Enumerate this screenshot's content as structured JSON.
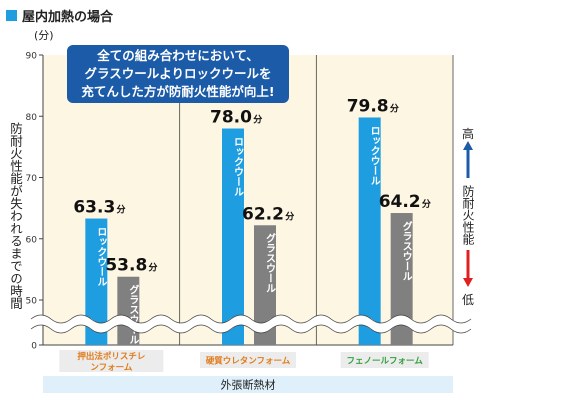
{
  "title": "屋内加熱の場合",
  "unit_label": "(分)",
  "ylabel": "防耐火性能が失われるまでの時間",
  "callout": {
    "lines": [
      "全ての組み合わせにおいて、",
      "グラスウールよりロックウールを",
      "充てんした方が防耐火性能が向上!"
    ]
  },
  "scale_indicator": {
    "high": "高",
    "low": "低",
    "label": "防耐火性能"
  },
  "colors": {
    "title_square": "#1e9de0",
    "rockwool": "#1e9de0",
    "glasswool": "#808080",
    "plot_bg": "#fdf6e3",
    "callout_bg": "#1c5ba8",
    "arrow_up": "#1c5ba8",
    "arrow_down": "#e02020",
    "category_label": "#e07b1a",
    "foam_label": "#2fa03a",
    "xaxis_band": "#dff0fb"
  },
  "chart_data": {
    "type": "bar",
    "categories": [
      "押出法ポリスチレンフォーム",
      "硬質ウレタンフォーム",
      "フェノールフォーム"
    ],
    "series": [
      {
        "name": "ロックウール",
        "values": [
          63.3,
          78.0,
          79.8
        ]
      },
      {
        "name": "グラスウール",
        "values": [
          53.8,
          62.2,
          64.2
        ]
      }
    ],
    "data_labels": [
      [
        "63.3",
        "53.8"
      ],
      [
        "78.0",
        "62.2"
      ],
      [
        "79.8",
        "64.2"
      ]
    ],
    "data_label_suffix": "分",
    "bar_text": [
      [
        "ロックウール",
        "グラスウール"
      ],
      [
        "ロックウール",
        "グラスウール"
      ],
      [
        "ロックウール",
        "グラスウール"
      ]
    ],
    "yticks": [
      0,
      50,
      60,
      70,
      80,
      90
    ],
    "ylim": [
      0,
      90
    ],
    "axis_break": true,
    "xlabel": "外張断熱材",
    "grid": false
  }
}
